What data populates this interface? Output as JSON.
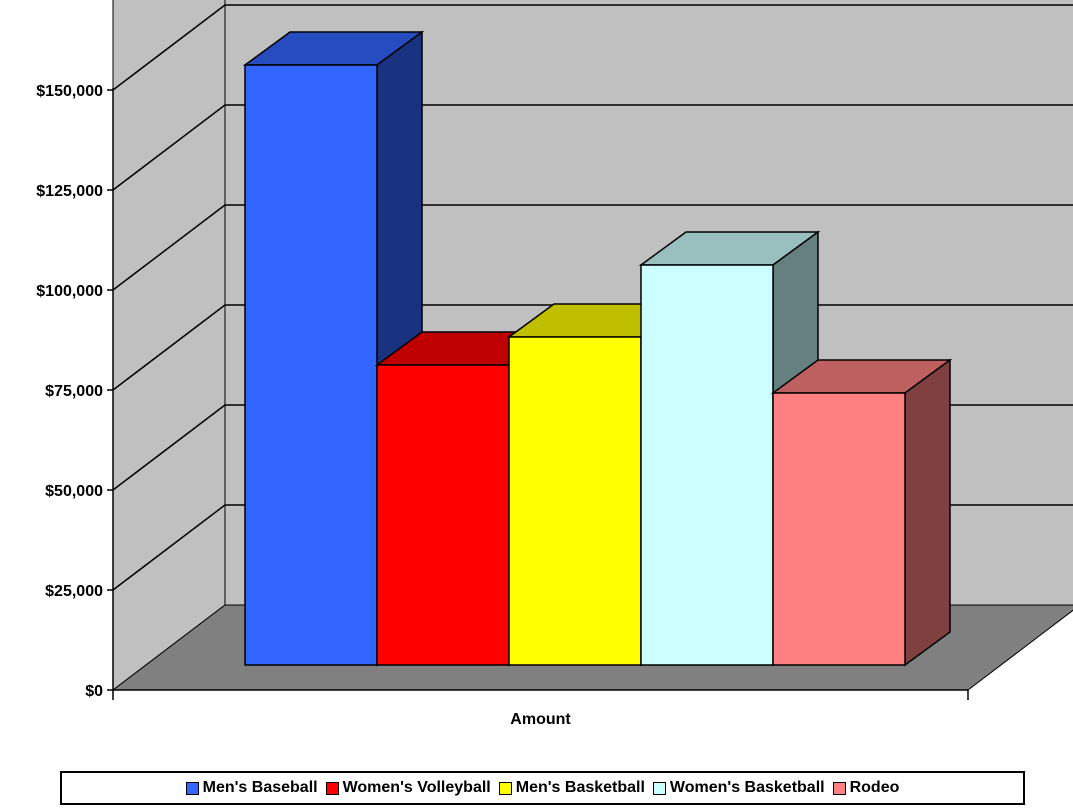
{
  "chart_data": {
    "type": "bar",
    "categories": [
      "Amount"
    ],
    "xlabel": "Amount",
    "ylabel": "",
    "ylim": [
      0,
      150000
    ],
    "yticks": [
      "$0",
      "$25,000",
      "$50,000",
      "$75,000",
      "$100,000",
      "$125,000",
      "$150,000"
    ],
    "grid": true,
    "legend_position": "bottom",
    "series": [
      {
        "name": "Men's Baseball",
        "values": [
          150000
        ],
        "color": "#3366FF"
      },
      {
        "name": "Women's Volleyball",
        "values": [
          75000
        ],
        "color": "#FF0000"
      },
      {
        "name": "Men's Basketball",
        "values": [
          82000
        ],
        "color": "#FFFF00"
      },
      {
        "name": "Women's Basketball",
        "values": [
          100000
        ],
        "color": "#CCFFFF"
      },
      {
        "name": "Rodeo",
        "values": [
          68000
        ],
        "color": "#FF8080"
      }
    ],
    "wall_color": "#C0C0C0",
    "floor_color": "#808080"
  }
}
